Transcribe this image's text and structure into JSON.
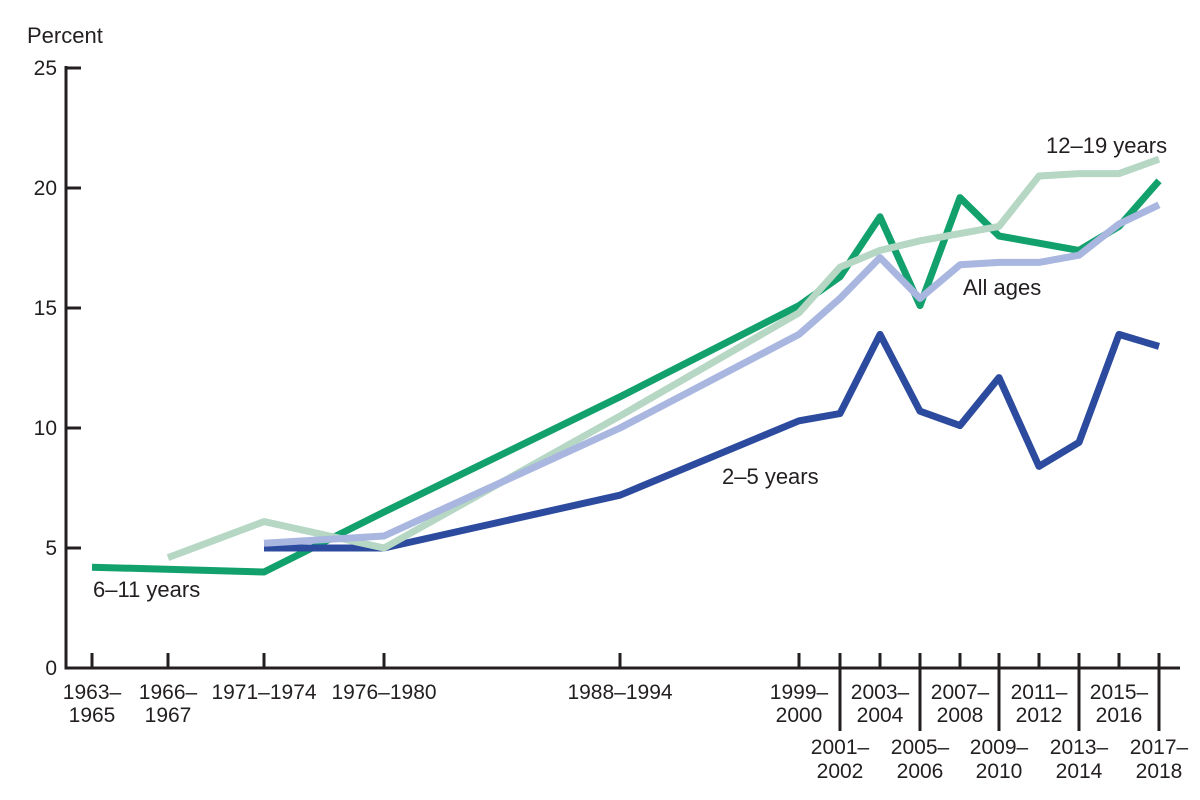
{
  "chart_data": {
    "type": "line",
    "title": "",
    "ylabel": "Percent",
    "xlabel": "",
    "ylim": [
      0,
      25
    ],
    "grid": false,
    "legend_position": "inline-labels",
    "ytick_values": [
      0,
      5,
      10,
      15,
      20,
      25
    ],
    "ytick_labels": [
      "0",
      "5",
      "10",
      "15",
      "20",
      "25"
    ],
    "categories": [
      "1963–1965",
      "1966–1967",
      "1971–1974",
      "1976–1980",
      "1988–1994",
      "1999–2000",
      "2001–2002",
      "2003–2004",
      "2005–2006",
      "2007–2008",
      "2009–2010",
      "2011–2012",
      "2013–2014",
      "2015–2016",
      "2017–2018"
    ],
    "category_label_lines": [
      [
        "1963–",
        "1965"
      ],
      [
        "1966–",
        "1967"
      ],
      [
        "1971–1974"
      ],
      [
        "1976–1980"
      ],
      [
        "1988–1994"
      ],
      [
        "1999–",
        "2000"
      ],
      [
        "2001–",
        "2002"
      ],
      [
        "2003–",
        "2004"
      ],
      [
        "2005–",
        "2006"
      ],
      [
        "2007–",
        "2008"
      ],
      [
        "2009–",
        "2010"
      ],
      [
        "2011–",
        "2012"
      ],
      [
        "2013–",
        "2014"
      ],
      [
        "2015–",
        "2016"
      ],
      [
        "2017–",
        "2018"
      ]
    ],
    "category_label_row": [
      "top",
      "top",
      "top",
      "top",
      "top",
      "top",
      "bottom",
      "top",
      "bottom",
      "top",
      "bottom",
      "top",
      "bottom",
      "top",
      "bottom"
    ],
    "series": [
      {
        "name": "12–19 years",
        "color": "#b5d7c4",
        "values": [
          null,
          4.6,
          6.1,
          5.0,
          10.5,
          14.8,
          16.7,
          17.4,
          17.8,
          18.1,
          18.4,
          20.5,
          20.6,
          20.6,
          21.2
        ]
      },
      {
        "name": "6–11 years",
        "color": "#12a16d",
        "values": [
          4.2,
          null,
          4.0,
          6.5,
          11.3,
          15.1,
          16.3,
          18.8,
          15.1,
          19.6,
          18.0,
          17.7,
          17.4,
          18.4,
          20.3
        ]
      },
      {
        "name": "All ages",
        "color": "#a8b6e0",
        "values": [
          null,
          null,
          5.2,
          5.5,
          10.0,
          13.9,
          15.4,
          17.1,
          15.4,
          16.8,
          16.9,
          16.9,
          17.2,
          18.5,
          19.3
        ]
      },
      {
        "name": "2–5 years",
        "color": "#2d4b9e",
        "values": [
          null,
          null,
          5.0,
          5.0,
          7.2,
          10.3,
          10.6,
          13.9,
          10.7,
          10.1,
          12.1,
          8.4,
          9.4,
          13.9,
          13.4
        ]
      }
    ],
    "axis_color": "#231f20"
  }
}
